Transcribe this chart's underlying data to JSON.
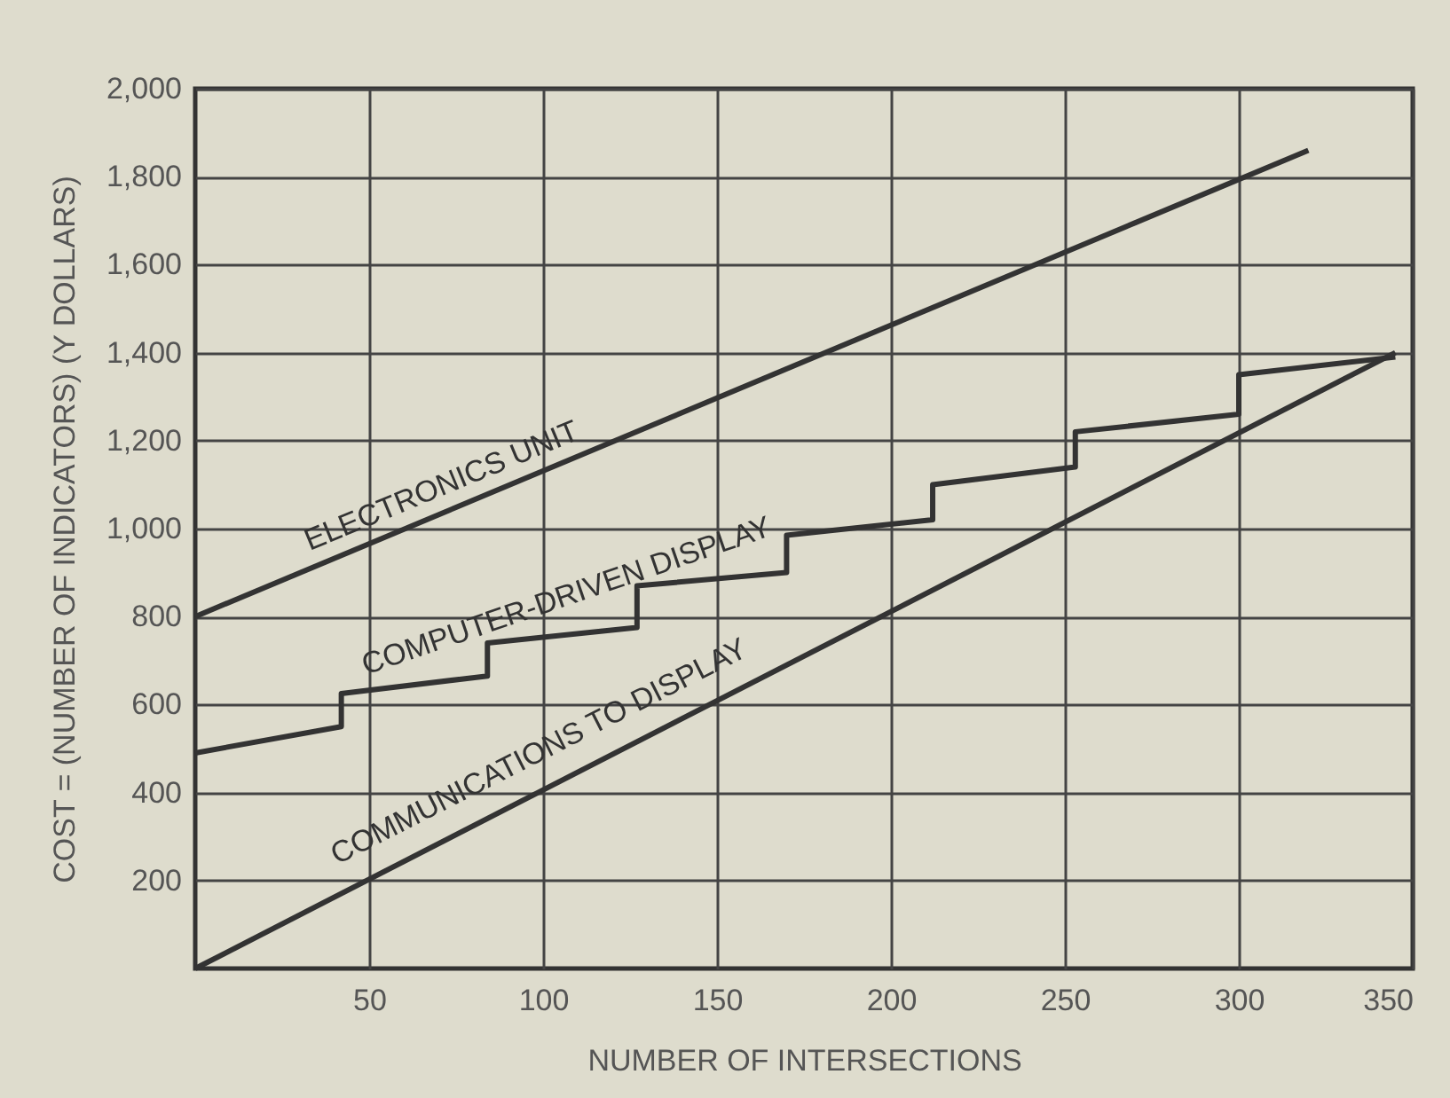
{
  "chart_data": {
    "type": "line",
    "xlabel": "NUMBER OF INTERSECTIONS",
    "ylabel": "COST = (NUMBER OF INDICATORS) (Y DOLLARS)",
    "xlim": [
      0,
      350
    ],
    "xticks": [
      50,
      100,
      150,
      200,
      250,
      300,
      350
    ],
    "ylim": [
      0,
      2000
    ],
    "yticks": [
      200,
      400,
      600,
      800,
      {
        "value": 1000,
        "label": "1,000"
      },
      {
        "value": 1200,
        "label": "1,200"
      },
      {
        "value": 1400,
        "label": "1,400"
      },
      {
        "value": 1600,
        "label": "1,600"
      },
      {
        "value": 1800,
        "label": "1,800"
      },
      {
        "value": 2000,
        "label": "2,000"
      }
    ],
    "grid": true,
    "series": [
      {
        "name": "ELECTRONICS UNIT",
        "color": "#333333",
        "x": [
          0,
          320
        ],
        "values": [
          800,
          1860
        ]
      },
      {
        "name": "COMPUTER-DRIVEN DISPLAY",
        "color": "#333333",
        "x": [
          0,
          42,
          42,
          84,
          84,
          127,
          127,
          170,
          170,
          212,
          212,
          253,
          253,
          300,
          300,
          345
        ],
        "values": [
          490,
          550,
          625,
          665,
          740,
          775,
          870,
          900,
          985,
          1020,
          1100,
          1140,
          1220,
          1260,
          1350,
          1390
        ]
      },
      {
        "name": "COMMUNICATIONS TO DISPLAY",
        "color": "#333333",
        "x": [
          0,
          345
        ],
        "values": [
          0,
          1400
        ]
      }
    ]
  }
}
